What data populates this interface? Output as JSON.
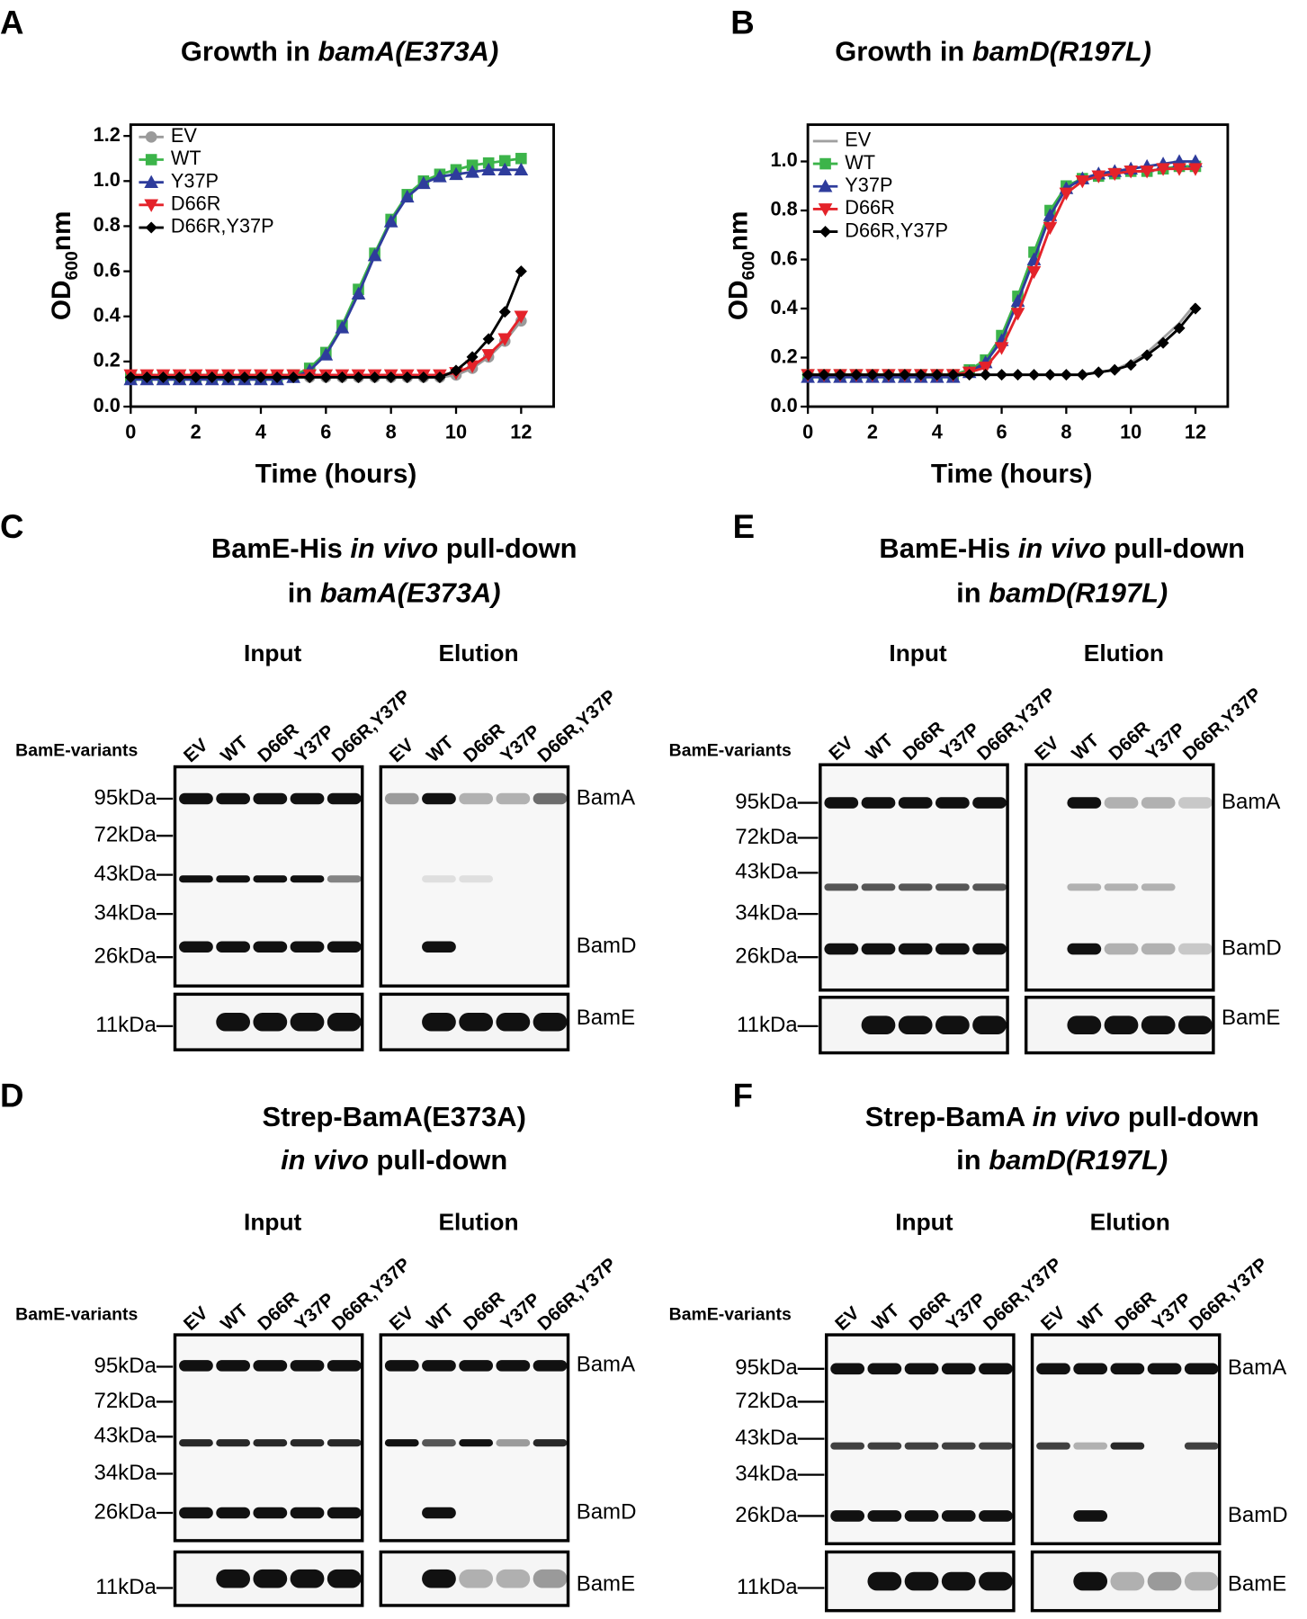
{
  "chart_data": [
    {
      "type": "line",
      "panel_label": "A",
      "title": [
        {
          "text": "Growth in "
        },
        {
          "text": "bamA(E373A)",
          "italic": true
        }
      ],
      "x_label": "Time (hours)",
      "y_label": [
        {
          "text": "OD"
        },
        {
          "text": "600",
          "sub": true
        },
        {
          "text": "nm"
        }
      ],
      "x": [
        0,
        0.5,
        1,
        1.5,
        2,
        2.5,
        3,
        3.5,
        4,
        4.5,
        5,
        5.5,
        6,
        6.5,
        7,
        7.5,
        8,
        8.5,
        9,
        9.5,
        10,
        10.5,
        11,
        11.5,
        12
      ],
      "xlim": [
        0,
        13
      ],
      "xticks": [
        0,
        2,
        4,
        6,
        8,
        10,
        12
      ],
      "ylim": [
        0,
        1.25
      ],
      "yticks": [
        {
          "value": 0,
          "label": "0.0"
        },
        {
          "value": 0.2,
          "label": "0.2"
        },
        {
          "value": 0.4,
          "label": "0.4"
        },
        {
          "value": 0.6,
          "label": "0.6"
        },
        {
          "value": 0.8,
          "label": "0.8"
        },
        {
          "value": 1,
          "label": "1.0"
        },
        {
          "value": 1.2,
          "label": "1.2"
        }
      ],
      "legend": "top-left",
      "series": [
        {
          "name": "EV",
          "color": "#9a9a9a",
          "marker": "circle",
          "values": [
            0.13,
            0.13,
            0.13,
            0.13,
            0.13,
            0.13,
            0.13,
            0.13,
            0.13,
            0.13,
            0.13,
            0.13,
            0.13,
            0.13,
            0.13,
            0.13,
            0.13,
            0.13,
            0.13,
            0.13,
            0.14,
            0.17,
            0.22,
            0.29,
            0.38
          ]
        },
        {
          "name": "WT",
          "color": "#3cb44a",
          "marker": "square",
          "values": [
            0.13,
            0.13,
            0.13,
            0.13,
            0.13,
            0.13,
            0.13,
            0.13,
            0.13,
            0.13,
            0.14,
            0.17,
            0.24,
            0.36,
            0.52,
            0.68,
            0.83,
            0.94,
            1.0,
            1.03,
            1.05,
            1.07,
            1.08,
            1.09,
            1.1
          ]
        },
        {
          "name": "Y37P",
          "color": "#2e3c9c",
          "marker": "triangle-up",
          "values": [
            0.12,
            0.12,
            0.12,
            0.12,
            0.12,
            0.12,
            0.12,
            0.12,
            0.12,
            0.12,
            0.13,
            0.16,
            0.23,
            0.35,
            0.5,
            0.67,
            0.82,
            0.93,
            0.99,
            1.02,
            1.03,
            1.04,
            1.05,
            1.05,
            1.05
          ]
        },
        {
          "name": "D66R",
          "color": "#e4232a",
          "marker": "triangle-down",
          "values": [
            0.14,
            0.14,
            0.14,
            0.14,
            0.14,
            0.14,
            0.14,
            0.14,
            0.14,
            0.14,
            0.14,
            0.14,
            0.14,
            0.14,
            0.14,
            0.14,
            0.14,
            0.14,
            0.14,
            0.14,
            0.15,
            0.18,
            0.23,
            0.3,
            0.4
          ]
        },
        {
          "name": "D66R,Y37P",
          "color": "#000000",
          "marker": "diamond",
          "values": [
            0.13,
            0.13,
            0.13,
            0.13,
            0.13,
            0.13,
            0.13,
            0.13,
            0.13,
            0.13,
            0.13,
            0.13,
            0.13,
            0.13,
            0.13,
            0.13,
            0.13,
            0.13,
            0.13,
            0.13,
            0.16,
            0.22,
            0.3,
            0.42,
            0.6
          ]
        }
      ]
    },
    {
      "type": "line",
      "panel_label": "B",
      "title": [
        {
          "text": "Growth in "
        },
        {
          "text": "bamD(R197L)",
          "italic": true
        }
      ],
      "x_label": "Time (hours)",
      "y_label": [
        {
          "text": "OD"
        },
        {
          "text": "600",
          "sub": true
        },
        {
          "text": "nm"
        }
      ],
      "x": [
        0,
        0.5,
        1,
        1.5,
        2,
        2.5,
        3,
        3.5,
        4,
        4.5,
        5,
        5.5,
        6,
        6.5,
        7,
        7.5,
        8,
        8.5,
        9,
        9.5,
        10,
        10.5,
        11,
        11.5,
        12
      ],
      "xlim": [
        0,
        13
      ],
      "xticks": [
        0,
        2,
        4,
        6,
        8,
        10,
        12
      ],
      "ylim": [
        0,
        1.15
      ],
      "yticks": [
        {
          "value": 0,
          "label": "0.0"
        },
        {
          "value": 0.2,
          "label": "0.2"
        },
        {
          "value": 0.4,
          "label": "0.4"
        },
        {
          "value": 0.6,
          "label": "0.6"
        },
        {
          "value": 0.8,
          "label": "0.8"
        },
        {
          "value": 1,
          "label": "1.0"
        }
      ],
      "legend": "top-left",
      "series": [
        {
          "name": "EV",
          "color": "#a0a0a0",
          "values": [
            0.13,
            0.13,
            0.13,
            0.13,
            0.13,
            0.13,
            0.13,
            0.13,
            0.13,
            0.13,
            0.13,
            0.13,
            0.13,
            0.13,
            0.13,
            0.13,
            0.13,
            0.13,
            0.14,
            0.15,
            0.18,
            0.22,
            0.28,
            0.34,
            0.42
          ]
        },
        {
          "name": "WT",
          "color": "#3cb44a",
          "marker": "square",
          "values": [
            0.13,
            0.13,
            0.13,
            0.13,
            0.13,
            0.13,
            0.13,
            0.13,
            0.13,
            0.13,
            0.15,
            0.19,
            0.29,
            0.45,
            0.63,
            0.8,
            0.9,
            0.93,
            0.94,
            0.95,
            0.96,
            0.96,
            0.97,
            0.98,
            0.98
          ]
        },
        {
          "name": "Y37P",
          "color": "#2e3c9c",
          "marker": "triangle-up",
          "values": [
            0.12,
            0.12,
            0.12,
            0.12,
            0.12,
            0.12,
            0.12,
            0.12,
            0.12,
            0.12,
            0.14,
            0.18,
            0.27,
            0.43,
            0.6,
            0.78,
            0.89,
            0.93,
            0.95,
            0.96,
            0.97,
            0.98,
            0.99,
            1.0,
            1.0
          ]
        },
        {
          "name": "D66R",
          "color": "#e4232a",
          "marker": "triangle-down",
          "values": [
            0.13,
            0.13,
            0.13,
            0.13,
            0.13,
            0.13,
            0.13,
            0.13,
            0.13,
            0.13,
            0.14,
            0.16,
            0.24,
            0.38,
            0.55,
            0.73,
            0.87,
            0.92,
            0.94,
            0.95,
            0.96,
            0.96,
            0.97,
            0.97,
            0.97
          ]
        },
        {
          "name": "D66R,Y37P",
          "color": "#000000",
          "marker": "diamond",
          "values": [
            0.13,
            0.13,
            0.13,
            0.13,
            0.13,
            0.13,
            0.13,
            0.13,
            0.13,
            0.13,
            0.13,
            0.13,
            0.13,
            0.13,
            0.13,
            0.13,
            0.13,
            0.13,
            0.14,
            0.15,
            0.17,
            0.21,
            0.26,
            0.32,
            0.4
          ]
        }
      ]
    }
  ],
  "blots": [
    {
      "panel_label": "C",
      "title": [
        [
          {
            "text": "BamE-His "
          },
          {
            "text": "in vivo",
            "italic": true
          },
          {
            "text": " pull-down"
          }
        ],
        [
          {
            "text": "in "
          },
          {
            "text": "bamA(E373A)",
            "italic": true
          }
        ]
      ],
      "groups": [
        "Input",
        "Elution"
      ],
      "row_label": "BamE-variants",
      "lanes": [
        "EV",
        "WT",
        "D66R",
        "Y37P",
        "D66R,Y37P"
      ],
      "markers": [
        "95kDa",
        "72kDa",
        "43kDa",
        "34kDa",
        "26kDa",
        "11kDa"
      ],
      "proteins": [
        "BamA",
        "BamD",
        "BamE"
      ]
    },
    {
      "panel_label": "E",
      "title": [
        [
          {
            "text": "BamE-His "
          },
          {
            "text": "in vivo",
            "italic": true
          },
          {
            "text": " pull-down"
          }
        ],
        [
          {
            "text": "in "
          },
          {
            "text": "bamD(R197L)",
            "italic": true
          }
        ]
      ],
      "groups": [
        "Input",
        "Elution"
      ],
      "row_label": "BamE-variants",
      "lanes": [
        "EV",
        "WT",
        "D66R",
        "Y37P",
        "D66R,Y37P"
      ],
      "markers": [
        "95kDa",
        "72kDa",
        "43kDa",
        "34kDa",
        "26kDa",
        "11kDa"
      ],
      "proteins": [
        "BamA",
        "BamD",
        "BamE"
      ]
    },
    {
      "panel_label": "D",
      "title": [
        [
          {
            "text": "Strep-BamA(E373A)"
          }
        ],
        [
          {
            "text": "in vivo",
            "italic": true
          },
          {
            "text": " pull-down"
          }
        ]
      ],
      "groups": [
        "Input",
        "Elution"
      ],
      "row_label": "BamE-variants",
      "lanes": [
        "EV",
        "WT",
        "D66R",
        "Y37P",
        "D66R,Y37P"
      ],
      "markers": [
        "95kDa",
        "72kDa",
        "43kDa",
        "34kDa",
        "26kDa",
        "11kDa"
      ],
      "proteins": [
        "BamA",
        "BamD",
        "BamE"
      ]
    },
    {
      "panel_label": "F",
      "title": [
        [
          {
            "text": "Strep-BamA "
          },
          {
            "text": "in vivo",
            "italic": true
          },
          {
            "text": " pull-down"
          }
        ],
        [
          {
            "text": "in "
          },
          {
            "text": "bamD(R197L)",
            "italic": true
          }
        ]
      ],
      "groups": [
        "Input",
        "Elution"
      ],
      "row_label": "BamE-variants",
      "lanes": [
        "EV",
        "WT",
        "D66R",
        "Y37P",
        "D66R,Y37P"
      ],
      "markers": [
        "95kDa",
        "72kDa",
        "43kDa",
        "34kDa",
        "26kDa",
        "11kDa"
      ],
      "proteins": [
        "BamA",
        "BamD",
        "BamE"
      ]
    }
  ]
}
